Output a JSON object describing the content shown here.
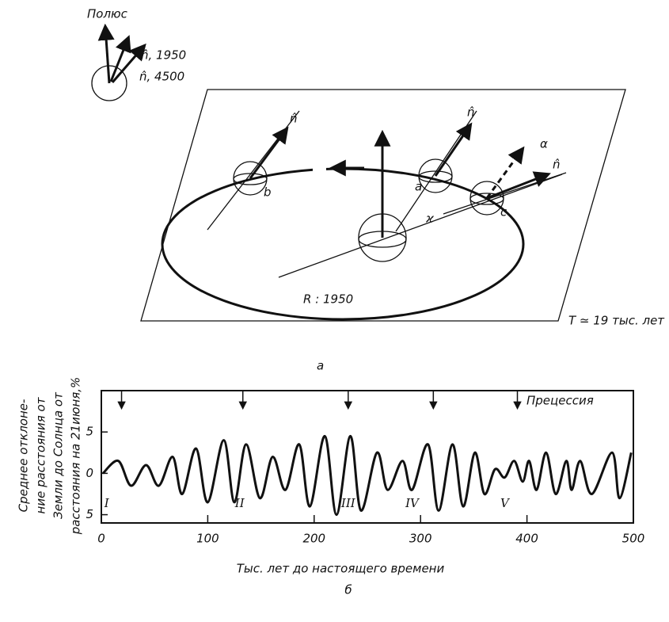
{
  "diagram": {
    "pole_label": "Полюс",
    "n_1950": "n̂, 1950",
    "n_4500": "n̂, 4500",
    "n_labels": [
      "n̂",
      "n̂",
      "n̂",
      "n̂"
    ],
    "points": [
      "b",
      "a",
      "c"
    ],
    "radius_label": "R : 1950",
    "kappa": "ϰ",
    "alpha": "α",
    "period": "T ≃ 19 тыс. лет",
    "caption": "а"
  },
  "chart_data": {
    "type": "line",
    "caption": "б",
    "y_label": [
      "Среднее отклоне-",
      "ние расстояния от",
      "Земли до Солнца от",
      "расстояния на 21июня,%"
    ],
    "x_label": "Тыс. лет до настоящего времени",
    "x": [
      1.5,
      16,
      28,
      42,
      54,
      67,
      76,
      89,
      100,
      115,
      125,
      136,
      149,
      161,
      173,
      186,
      196,
      210,
      221,
      234,
      244,
      259,
      269,
      283,
      292,
      307,
      317,
      330,
      340,
      351,
      360,
      370,
      379,
      388,
      396,
      402,
      409,
      418,
      427,
      437,
      442,
      450,
      461,
      480,
      487,
      498
    ],
    "values": [
      0,
      1.5,
      -1.5,
      1,
      -1.5,
      2,
      -2.5,
      3,
      -3.5,
      4,
      -3.5,
      3.5,
      -3,
      2,
      -2,
      3.5,
      -4,
      4.5,
      -5,
      4.5,
      -4.5,
      2.5,
      -2,
      1.5,
      -2,
      3.5,
      -4.5,
      3.5,
      -4,
      2.5,
      -2.5,
      0.5,
      -0.5,
      1.5,
      -1,
      1.5,
      -2,
      2.5,
      -2.5,
      1.5,
      -2,
      1.5,
      -2.5,
      2.5,
      -3,
      2.5
    ],
    "color": "#111",
    "xlim": [
      0,
      500
    ],
    "xticks": [
      0,
      100,
      200,
      300,
      400,
      500
    ],
    "ylim": [
      -6,
      10
    ],
    "yticks": [
      5,
      0,
      {
        "value": -5,
        "label": "5"
      }
    ],
    "precession": {
      "label": "Прецессия",
      "x": [
        19,
        133,
        232,
        312,
        391
      ]
    },
    "periods": [
      {
        "label": "I",
        "x": 5
      },
      {
        "label": "II",
        "x": 130
      },
      {
        "label": "III",
        "x": 232
      },
      {
        "label": "IV",
        "x": 292
      },
      {
        "label": "V",
        "x": 379
      }
    ]
  }
}
